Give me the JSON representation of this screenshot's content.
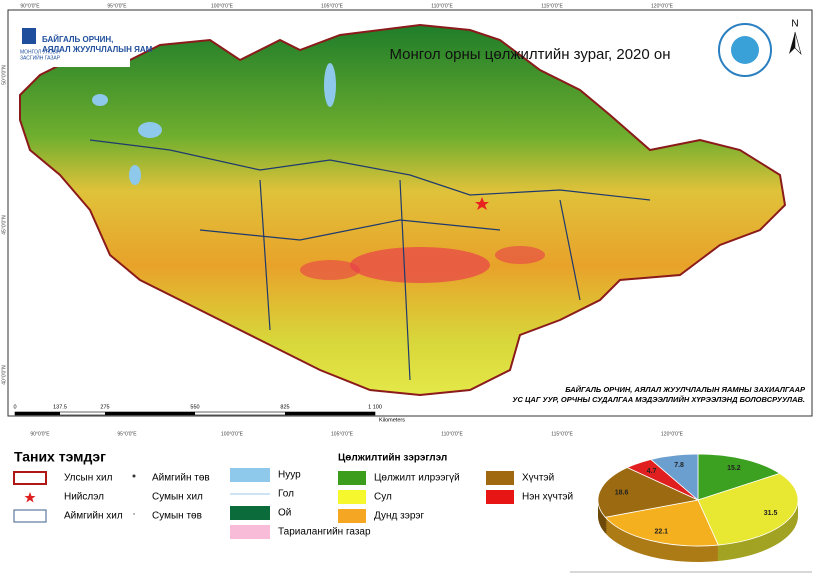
{
  "header": {
    "logo_lines": [
      "МОНГОЛ УЛСЫН",
      "ЗАСГИЙН ГАЗАР"
    ],
    "ministry_lines": [
      "БАЙГАЛЬ ОРЧИН,",
      "АЯЛАЛ ЖУУЛЧЛАЛЫН ЯАМ"
    ],
    "title": "Монгол орны цөлжилтийн зураг, 2020 он",
    "north": "N"
  },
  "map": {
    "lon_labels": [
      "90°0'0\"E",
      "95°0'0\"E",
      "100°0'0\"E",
      "105°0'0\"E",
      "110°0'0\"E",
      "115°0'0\"E",
      "120°0'0\"E"
    ],
    "lat_labels": [
      "50°0'0\"N",
      "45°0'0\"N",
      "40°0'0\"N"
    ],
    "scale_labels": [
      "0",
      "137.5",
      "275",
      "550",
      "825",
      "1 100"
    ],
    "scale_unit": "Kilometers",
    "credit_lines": [
      "БАЙГАЛЬ ОРЧИН, АЯЛАЛ ЖУУЛЧЛАЛЫН ЯАМНЫ ЗАХИАЛГААР",
      "УС ЦАГ УУР, ОРЧНЫ СУДАЛГАА МЭДЭЭЛЛИЙН ХҮРЭЭЛЭНД БОЛОВСРУУЛАВ."
    ]
  },
  "legend": {
    "title": "Таних тэмдэг",
    "items": [
      "Улсын хил",
      "Нийслэл",
      "Аймгийн хил",
      "Аймгийн төв",
      "Сумын хил",
      "Сумын төв",
      "Нуур",
      "Гол",
      "Ой",
      "Тариалангийн газар"
    ],
    "desert_title": "Цөлжилтийн зэрэглэл",
    "desert_items": [
      {
        "label": "Цөлжилт илрээгүй",
        "color": "#3c9c1c"
      },
      {
        "label": "Сул",
        "color": "#f7f72e"
      },
      {
        "label": "Дунд зэрэг",
        "color": "#f5a623"
      },
      {
        "label": "Хүчтэй",
        "color": "#a0680f"
      },
      {
        "label": "Нэн хүчтэй",
        "color": "#e81515"
      }
    ]
  },
  "chart_data": {
    "type": "pie",
    "values": [
      15.2,
      31.5,
      22.1,
      18.6,
      4.7,
      7.8
    ],
    "colors": [
      "#3ca020",
      "#e8e832",
      "#f5b020",
      "#9c6a10",
      "#e02020",
      "#6a9fd0"
    ]
  }
}
